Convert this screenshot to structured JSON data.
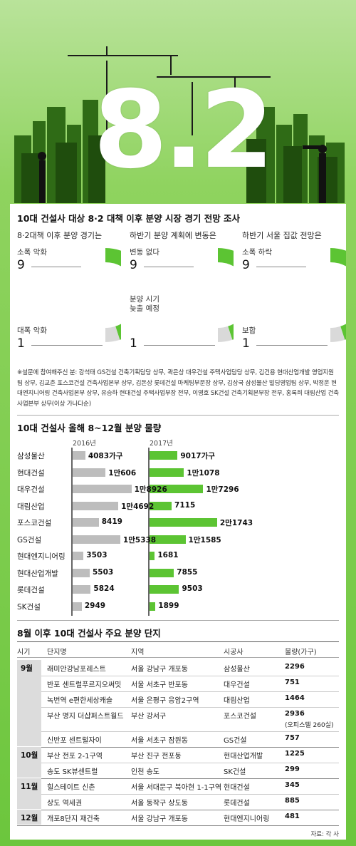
{
  "hero": {
    "title": "8.2"
  },
  "survey": {
    "title": "10대 건설사 대상 8·2 대책 이후 분양 시장 경기 전망 조사",
    "columns": [
      {
        "heading": "8·2대책 이후 분양 경기는",
        "top_label": "소폭 악화",
        "top_value": "9",
        "bottom_label": "대폭 악화",
        "bottom_value": "1"
      },
      {
        "heading": "하반기 분양 계획에 변동은",
        "top_label": "변동 없다",
        "top_value": "9",
        "bottom_label": "분양 시기\n늦출 예정",
        "bottom_value": "1"
      },
      {
        "heading": "하반기 서울 집값 전망은",
        "top_label": "소폭 하락",
        "top_value": "9",
        "bottom_label": "보합",
        "bottom_value": "1"
      }
    ],
    "note": "※설문에 참여해주신 분: 강석태 GS건설 건축기획담당 상무, 곽은상 대우건설 주택사업담당 상무, 김건용 현대산업개발 영업지원팀 상무, 김교춘 포스코건설 건축사업본부 상무, 김돈상 롯데건설 마케팅부문장 상무, 김상국 삼성물산 빌딩영업팀 상무, 박정운 현대엔지니어링 건축사업본부 상무, 유승하 현대건설 주택사업부장 전무, 이영호 SK건설 건축기획본부장 전무, 홍록희 대림산업 건축사업본부 상무(이상 가나다순)"
  },
  "chart_data": {
    "type": "bar",
    "title": "10대 건설사 올해 8~12월 분양 물량",
    "categories": [
      "삼성물산",
      "현대건설",
      "대우건설",
      "대림산업",
      "포스코건설",
      "GS건설",
      "현대엔지니어링",
      "현대산업개발",
      "롯데건설",
      "SK건설"
    ],
    "series": [
      {
        "name": "2016년",
        "values": [
          4083,
          10606,
          18926,
          14692,
          8419,
          15338,
          3503,
          5503,
          5824,
          2949
        ],
        "labels": [
          "4083가구",
          "1만606",
          "1만8926",
          "1만4692",
          "8419",
          "1만5338",
          "3503",
          "5503",
          "5824",
          "2949"
        ]
      },
      {
        "name": "2017년",
        "values": [
          9017,
          11078,
          17296,
          7115,
          21743,
          11585,
          1681,
          7855,
          9503,
          1899
        ],
        "labels": [
          "9017가구",
          "1만1078",
          "1만7296",
          "7115",
          "2만1743",
          "1만1585",
          "1681",
          "7855",
          "9503",
          "1899"
        ]
      }
    ],
    "colors": {
      "2016년": "#bdbdbd",
      "2017년": "#5cc433"
    }
  },
  "table": {
    "title": "8월 이후 10대 건설사 주요 분양 단지",
    "headers": [
      "시기",
      "단지명",
      "지역",
      "시공사",
      "물량(가구)"
    ],
    "rows": [
      {
        "month": "9월",
        "name": "래미안강남포레스트",
        "region": "서울 강남구 개포동",
        "builder": "삼성물산",
        "units": "2296"
      },
      {
        "month": "",
        "name": "반포 센트럴푸르지오써밋",
        "region": "서울 서초구 반포동",
        "builder": "대우건설",
        "units": "751"
      },
      {
        "month": "",
        "name": "녹번역 e편한세상캐슬",
        "region": "서울 은평구 응암2구역",
        "builder": "대림산업",
        "units": "1464"
      },
      {
        "month": "",
        "name": "부산 명지 더샵퍼스트월드",
        "region": "부산 강서구",
        "builder": "포스코건설",
        "units": "2936",
        "units_note": "(오피스텔 260실)"
      },
      {
        "month": "",
        "name": "신반포 센트럴자이",
        "region": "서울 서초구 잠원동",
        "builder": "GS건설",
        "units": "757"
      },
      {
        "month": "10월",
        "name": "부산 전포 2-1구역",
        "region": "부산 진구 전포동",
        "builder": "현대산업개발",
        "units": "1225"
      },
      {
        "month": "",
        "name": "송도 SK뷰센트럴",
        "region": "인천 송도",
        "builder": "SK건설",
        "units": "299"
      },
      {
        "month": "11월",
        "name": "힐스테이트 신촌",
        "region": "서울 서대문구 북아현 1-1구역",
        "builder": "현대건설",
        "units": "345"
      },
      {
        "month": "",
        "name": "상도 역세권",
        "region": "서울 동작구 상도동",
        "builder": "롯데건설",
        "units": "885"
      },
      {
        "month": "12월",
        "name": "개포8단지 재건축",
        "region": "서울 강남구 개포동",
        "builder": "현대엔지니어링",
        "units": "481"
      }
    ],
    "source": "자료: 각 사"
  }
}
